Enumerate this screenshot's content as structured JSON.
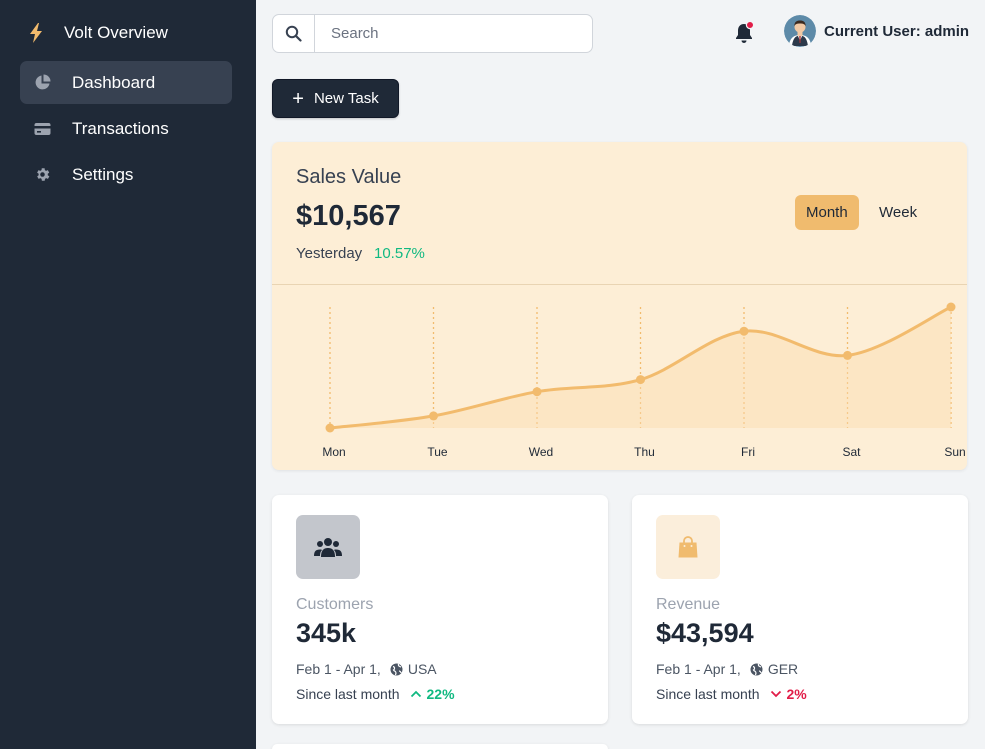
{
  "sidebar": {
    "brand": "Volt Overview",
    "items": [
      {
        "label": "Dashboard",
        "icon": "chart-pie-icon",
        "active": true
      },
      {
        "label": "Transactions",
        "icon": "credit-card-icon",
        "active": false
      },
      {
        "label": "Settings",
        "icon": "gear-icon",
        "active": false
      }
    ]
  },
  "topbar": {
    "search_placeholder": "Search",
    "user_label": "Current User: admin",
    "notification_dot_color": "#e11d48"
  },
  "actions": {
    "new_task_label": "New Task"
  },
  "sales": {
    "title": "Sales Value",
    "value": "$10,567",
    "period_label": "Yesterday",
    "change": "10.57%",
    "toggle_month": "Month",
    "toggle_week": "Week"
  },
  "chart_data": {
    "type": "area",
    "categories": [
      "Mon",
      "Tue",
      "Wed",
      "Thu",
      "Fri",
      "Sat",
      "Sun"
    ],
    "values": [
      0,
      10,
      30,
      40,
      80,
      60,
      100
    ],
    "ylim": [
      0,
      100
    ],
    "grid": "vertical dashed",
    "color": "#f2bb6d"
  },
  "stats": [
    {
      "label": "Customers",
      "value": "345k",
      "range": "Feb 1 - Apr 1,",
      "region": "USA",
      "since": "Since last month",
      "delta": "22%",
      "direction": "up",
      "icon": "users-icon",
      "icon_bg": "#c3c6cc",
      "icon_color": "#1f2937"
    },
    {
      "label": "Revenue",
      "value": "$43,594",
      "range": "Feb 1 - Apr 1,",
      "region": "GER",
      "since": "Since last month",
      "delta": "2%",
      "direction": "down",
      "icon": "shopping-bag-icon",
      "icon_bg": "#fbeedb",
      "icon_color": "#f0bb6e"
    }
  ]
}
